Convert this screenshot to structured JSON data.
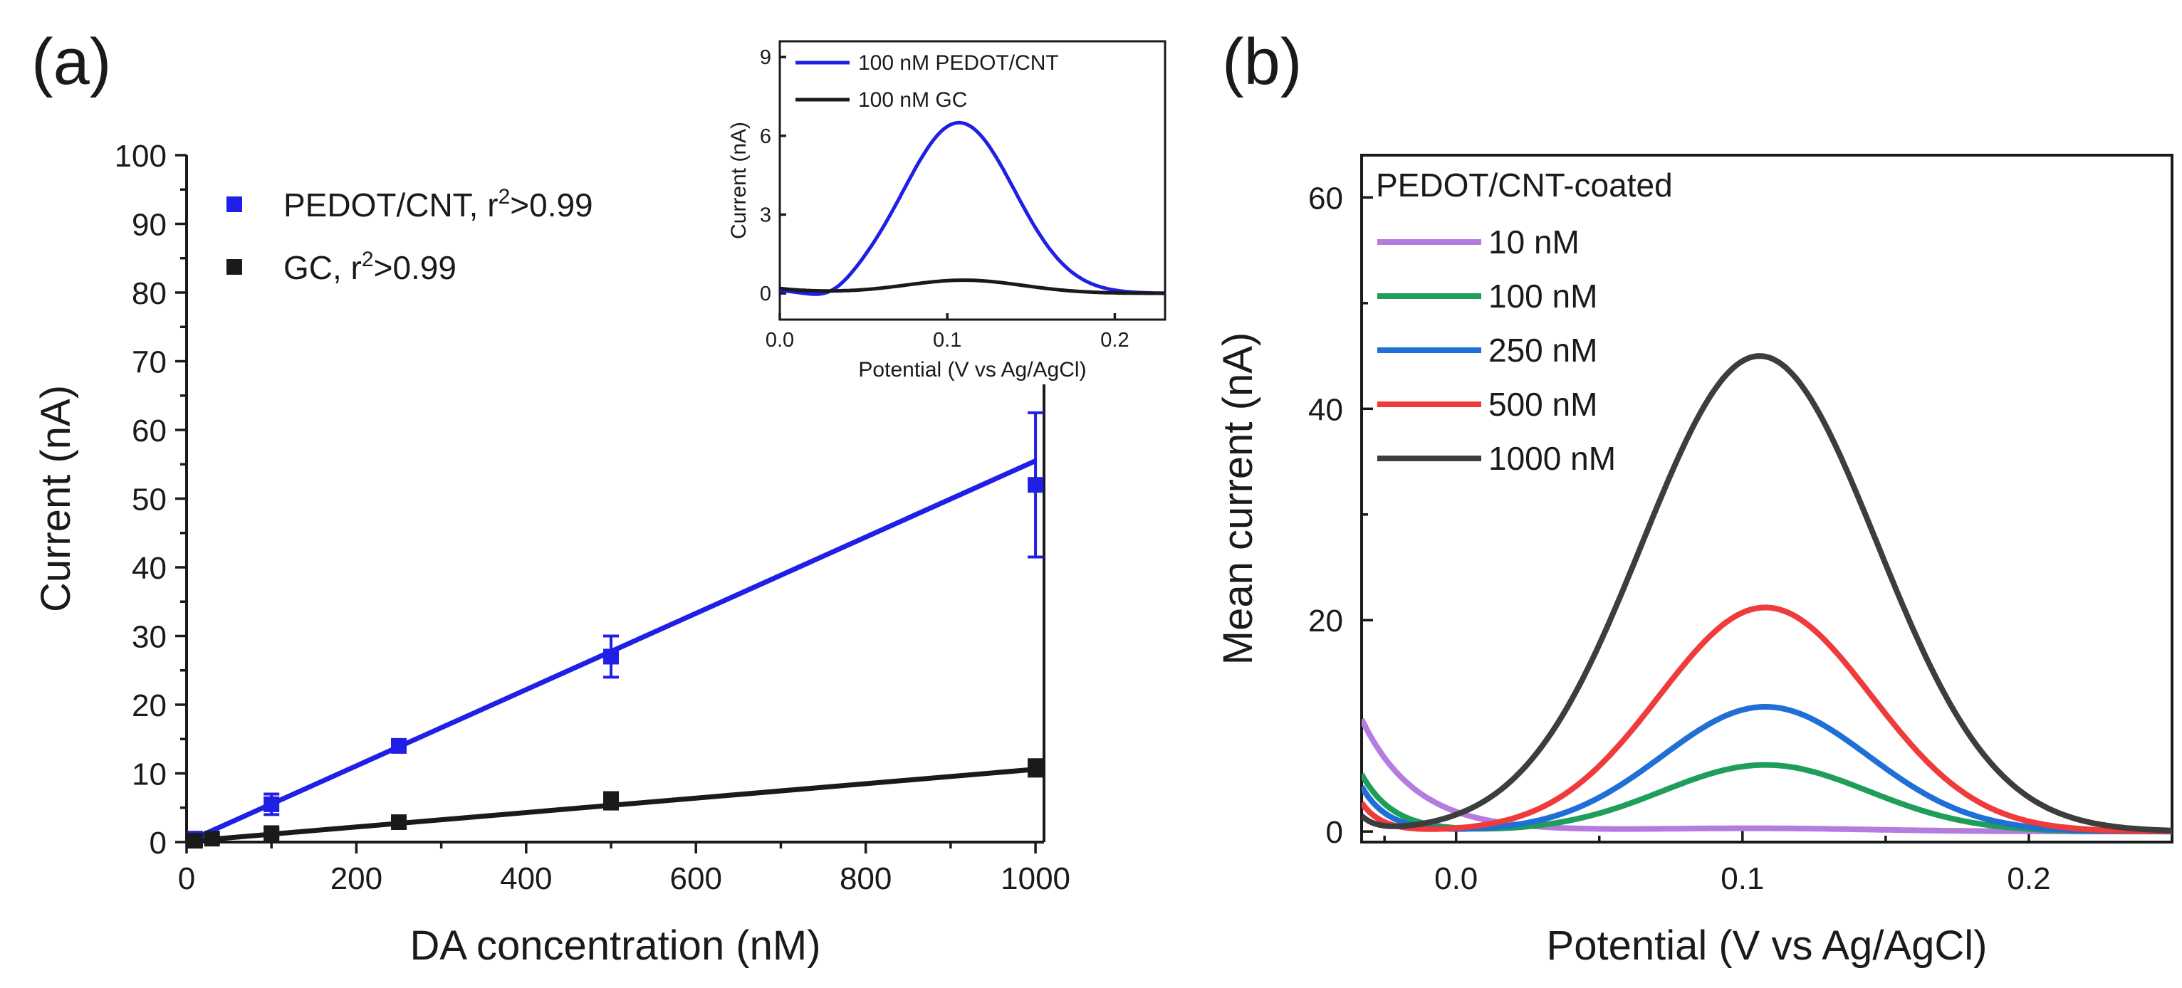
{
  "panel_labels": {
    "a": "(a)",
    "b": "(b)"
  },
  "chart_data": [
    {
      "id": "panel-a",
      "type": "scatter",
      "xlabel": "DA concentration (nM)",
      "ylabel": "Current (nA)",
      "xlim": [
        0,
        1010
      ],
      "ylim": [
        0,
        100
      ],
      "xticks": [
        0,
        200,
        400,
        600,
        800,
        1000
      ],
      "yticks": [
        0,
        10,
        20,
        30,
        40,
        50,
        60,
        70,
        80,
        90,
        100
      ],
      "series": [
        {
          "name": "PEDOT/CNT",
          "legend_main": "PEDOT/CNT, r",
          "legend_sup": "2",
          "legend_tail": ">0.99",
          "color": "#1f1fe6",
          "x": [
            10,
            100,
            250,
            500,
            1000
          ],
          "y": [
            0.5,
            5.5,
            14,
            27,
            52
          ],
          "yerr": [
            0.3,
            1.5,
            0.8,
            3,
            10.5
          ],
          "fit": {
            "x": [
              0,
              1000
            ],
            "y": [
              0,
              55.5
            ]
          }
        },
        {
          "name": "GC",
          "legend_main": "GC, r",
          "legend_sup": "2",
          "legend_tail": ">0.99",
          "color": "#1a1a1a",
          "x": [
            10,
            30,
            100,
            250,
            500,
            1000
          ],
          "y": [
            0.2,
            0.5,
            1.3,
            2.9,
            6.0,
            10.8
          ],
          "yerr": [
            0.1,
            0.2,
            0.6,
            0.5,
            1.2,
            1.2
          ],
          "fit": {
            "x": [
              0,
              1000
            ],
            "y": [
              0.1,
              10.6
            ]
          }
        }
      ]
    },
    {
      "id": "inset-a",
      "type": "line",
      "xlabel": "Potential (V vs Ag/AgCl)",
      "ylabel": "Current (nA)",
      "xlim": [
        0,
        0.23
      ],
      "ylim": [
        -1,
        9.6
      ],
      "xticks": [
        0.0,
        0.1,
        0.2
      ],
      "xtick_labels": [
        "0.0",
        "0.1",
        "0.2"
      ],
      "yticks": [
        0,
        3,
        6,
        9
      ],
      "series": [
        {
          "name": "100 nM PEDOT/CNT",
          "color": "#1f1fe6",
          "gaussian": {
            "A": 6.5,
            "mu": 0.107,
            "sigma": 0.033,
            "pre_amp": 2.4,
            "pre_decay": 0.011
          }
        },
        {
          "name": "100 nM GC",
          "color": "#1a1a1a",
          "gaussian": {
            "A": 0.5,
            "mu": 0.11,
            "sigma": 0.035,
            "pre_amp": 0.75,
            "pre_decay": 0.025
          }
        }
      ]
    },
    {
      "id": "panel-b",
      "type": "line",
      "xlabel": "Potential (V vs Ag/AgCl)",
      "ylabel": "Mean current (nA)",
      "xlim": [
        -0.033,
        0.25
      ],
      "ylim": [
        -1,
        64
      ],
      "xticks": [
        0.0,
        0.1,
        0.2
      ],
      "xtick_labels": [
        "0.0",
        "0.1",
        "0.2"
      ],
      "yticks": [
        0,
        20,
        40,
        60
      ],
      "legend_title": "PEDOT/CNT-coated",
      "series": [
        {
          "name": "10 nM",
          "color": "#b57bdf",
          "gaussian": {
            "A": 0.3,
            "mu": 0.105,
            "sigma": 0.04,
            "pre_amp": 11.8,
            "pre_decay": 0.019
          }
        },
        {
          "name": "100 nM",
          "color": "#1f9e5a",
          "gaussian": {
            "A": 6.3,
            "mu": 0.108,
            "sigma": 0.036,
            "pre_amp": 6.5,
            "pre_decay": 0.011
          }
        },
        {
          "name": "250 nM",
          "color": "#1f6fd6",
          "gaussian": {
            "A": 11.8,
            "mu": 0.108,
            "sigma": 0.036,
            "pre_amp": 5.3,
            "pre_decay": 0.009
          }
        },
        {
          "name": "500 nM",
          "color": "#ef3b3b",
          "gaussian": {
            "A": 21.2,
            "mu": 0.108,
            "sigma": 0.037,
            "pre_amp": 3.6,
            "pre_decay": 0.007
          }
        },
        {
          "name": "1000 nM",
          "color": "#3d3d3d",
          "gaussian": {
            "A": 45,
            "mu": 0.106,
            "sigma": 0.041,
            "pre_amp": 2.0,
            "pre_decay": 0.005
          }
        }
      ]
    }
  ]
}
